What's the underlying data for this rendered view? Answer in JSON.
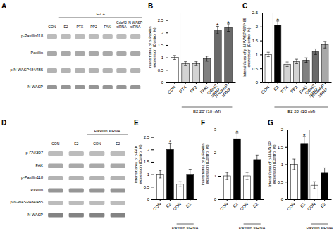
{
  "chart_data": [
    {
      "type": "blot",
      "title": "A",
      "categories": [
        "CON",
        "E2",
        "PTX",
        "PP2",
        "FAKi",
        "Cdo42\nsiRNA",
        "N-WASP\nsiRNA"
      ],
      "rows": [
        "p-Paxillin118",
        "Paxillin",
        "p-N-WASP484/485",
        "N-WASP"
      ],
      "annotations": [
        {
          "text": "E2 +",
          "start": 1,
          "end": 7
        }
      ]
    },
    {
      "type": "bar",
      "title": "B",
      "categories": [
        "CON",
        "PTX",
        "PP2",
        "FAKi",
        "Cdo42\nsiRNA",
        "N-WASP\nsiRNA"
      ],
      "values": [
        1.0,
        0.75,
        0.75,
        0.95,
        2.1,
        2.2
      ],
      "errors": [
        0.08,
        0.08,
        0.08,
        0.1,
        0.15,
        0.15
      ],
      "colors": [
        "white",
        "lightgray",
        "lightgray",
        "gray",
        "dimgray",
        "dimgray"
      ],
      "ylabel": "Intensit/area of p-Paxillin\nexpression (Control %)",
      "ylim": [
        0,
        2.8
      ],
      "yticks": [
        0,
        0.5,
        1,
        1.5,
        2,
        2.5
      ],
      "annotations": [
        {
          "text": "E2 20' (10 nM)",
          "start": 1,
          "end": 6
        },
        {
          "text": "*",
          "index": 4
        },
        {
          "text": "*",
          "index": 5
        }
      ]
    },
    {
      "type": "bar",
      "title": "C",
      "categories": [
        "CON",
        "E2",
        "PTX",
        "PP2",
        "FAKi",
        "Cdo42\nsiRNA",
        "N-WASP\nsiRNA"
      ],
      "values": [
        1.0,
        2.05,
        0.65,
        0.75,
        0.8,
        1.1,
        1.35
      ],
      "errors": [
        0.08,
        0.15,
        0.08,
        0.08,
        0.08,
        0.1,
        0.12
      ],
      "colors": [
        "white",
        "black",
        "lightgray",
        "lightgray",
        "gray",
        "dimgray",
        "darkgray"
      ],
      "ylabel": "Intensit/area of p-N-WASP484/485\nexpression (Control %)",
      "ylim": [
        0,
        2.5
      ],
      "yticks": [
        0,
        0.5,
        1,
        1.5,
        2,
        2.5
      ],
      "annotations": [
        {
          "text": "E2 20' (10 nM)",
          "start": 1,
          "end": 7
        },
        {
          "text": "*",
          "index": 1
        }
      ]
    },
    {
      "type": "blot",
      "title": "D",
      "categories": [
        "CON",
        "E2",
        "CON",
        "E2"
      ],
      "rows": [
        "p-FAK397",
        "FAK",
        "p-Paxillin118",
        "Paxillin",
        "p-N-WASP484/485",
        "N-WASP"
      ],
      "annotations": [
        {
          "text": "Paxillin siRNA",
          "start": 2,
          "end": 4
        }
      ]
    },
    {
      "type": "bar",
      "title": "E",
      "categories": [
        "CON",
        "E2",
        "CON",
        "E2"
      ],
      "values": [
        1.0,
        2.0,
        0.6,
        1.0
      ],
      "errors": [
        0.15,
        0.25,
        0.1,
        0.2
      ],
      "colors": [
        "white",
        "black",
        "white",
        "black"
      ],
      "ylabel": "Intensit/area of p-FAK\nexpression (Control %)",
      "ylim": [
        0,
        2.8
      ],
      "yticks": [
        0,
        0.5,
        1,
        1.5,
        2,
        2.5
      ],
      "annotations": [
        {
          "text": "Paxillin siRNA",
          "start": 2,
          "end": 4
        },
        {
          "text": "*",
          "index": 1
        }
      ]
    },
    {
      "type": "bar",
      "title": "F",
      "categories": [
        "CON",
        "E2",
        "CON",
        "E2"
      ],
      "values": [
        1.0,
        2.6,
        1.0,
        1.7
      ],
      "errors": [
        0.15,
        0.25,
        0.15,
        0.2
      ],
      "colors": [
        "white",
        "black",
        "white",
        "black"
      ],
      "ylabel": "Intensit/area of p-Paxillin\nexpression (Control %)",
      "ylim": [
        0,
        3.0
      ],
      "yticks": [
        0,
        1,
        2,
        3
      ],
      "annotations": [
        {
          "text": "Paxillin siRNA",
          "start": 2,
          "end": 4
        },
        {
          "text": "*",
          "index": 1
        }
      ]
    },
    {
      "type": "bar",
      "title": "G",
      "categories": [
        "CON",
        "E2",
        "CON",
        "E2"
      ],
      "values": [
        1.0,
        1.6,
        0.4,
        0.75
      ],
      "errors": [
        0.15,
        0.2,
        0.1,
        0.15
      ],
      "colors": [
        "white",
        "black",
        "white",
        "black"
      ],
      "ylabel": "Intensit/area of p-N-WASP\nexpression (Control %)",
      "ylim": [
        0,
        2.0
      ],
      "yticks": [
        0,
        0.5,
        1,
        1.5,
        2
      ],
      "annotations": [
        {
          "text": "Paxillin siRNA",
          "start": 2,
          "end": 4
        },
        {
          "text": "*",
          "index": 1
        }
      ]
    }
  ]
}
